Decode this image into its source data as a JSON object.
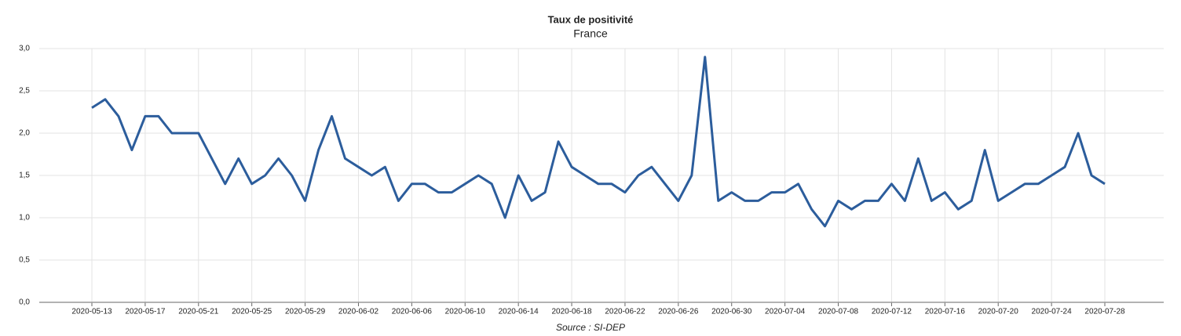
{
  "chart_data": {
    "type": "line",
    "title": "Taux de positivité",
    "subtitle": "France",
    "source": "Source : SI-DEP",
    "categories": [
      "2020-05-13",
      null,
      null,
      null,
      "2020-05-17",
      null,
      null,
      null,
      "2020-05-21",
      null,
      null,
      null,
      "2020-05-25",
      null,
      null,
      null,
      "2020-05-29",
      null,
      null,
      null,
      "2020-06-02",
      null,
      null,
      null,
      "2020-06-06",
      null,
      null,
      null,
      "2020-06-10",
      null,
      null,
      null,
      "2020-06-14",
      null,
      null,
      null,
      "2020-06-18",
      null,
      null,
      null,
      "2020-06-22",
      null,
      null,
      null,
      "2020-06-26",
      null,
      null,
      null,
      "2020-06-30",
      null,
      null,
      null,
      "2020-07-04",
      null,
      null,
      null,
      "2020-07-08",
      null,
      null,
      null,
      "2020-07-12",
      null,
      null,
      null,
      "2020-07-16",
      null,
      null,
      null,
      "2020-07-20",
      null,
      null,
      null,
      "2020-07-24",
      null,
      null,
      null,
      "2020-07-28"
    ],
    "values": [
      2.3,
      2.4,
      2.2,
      1.8,
      2.2,
      2.2,
      2.0,
      2.0,
      2.0,
      1.7,
      1.4,
      1.7,
      1.4,
      1.5,
      1.7,
      1.5,
      1.2,
      1.8,
      2.2,
      1.7,
      1.6,
      1.5,
      1.6,
      1.2,
      1.4,
      1.4,
      1.3,
      1.3,
      1.4,
      1.5,
      1.4,
      1.0,
      1.5,
      1.2,
      1.3,
      1.9,
      1.6,
      1.5,
      1.4,
      1.4,
      1.3,
      1.5,
      1.6,
      1.4,
      1.2,
      1.5,
      2.9,
      1.2,
      1.3,
      1.2,
      1.2,
      1.3,
      1.3,
      1.4,
      1.1,
      0.9,
      1.2,
      1.1,
      1.2,
      1.2,
      1.4,
      1.2,
      1.7,
      1.2,
      1.3,
      1.1,
      1.2,
      1.8,
      1.2,
      1.3,
      1.4,
      1.4,
      1.5,
      1.6,
      2.0,
      1.5,
      1.4
    ],
    "color": "#2c5d9c",
    "ylim": [
      0,
      3
    ],
    "yticks": [
      {
        "value": 0,
        "label": "0,0"
      },
      {
        "value": 0.5,
        "label": "0,5"
      },
      {
        "value": 1,
        "label": "1,0"
      },
      {
        "value": 1.5,
        "label": "1,5"
      },
      {
        "value": 2,
        "label": "2,0"
      },
      {
        "value": 2.5,
        "label": "2,5"
      },
      {
        "value": 3,
        "label": "3,0"
      }
    ],
    "grid": true
  }
}
